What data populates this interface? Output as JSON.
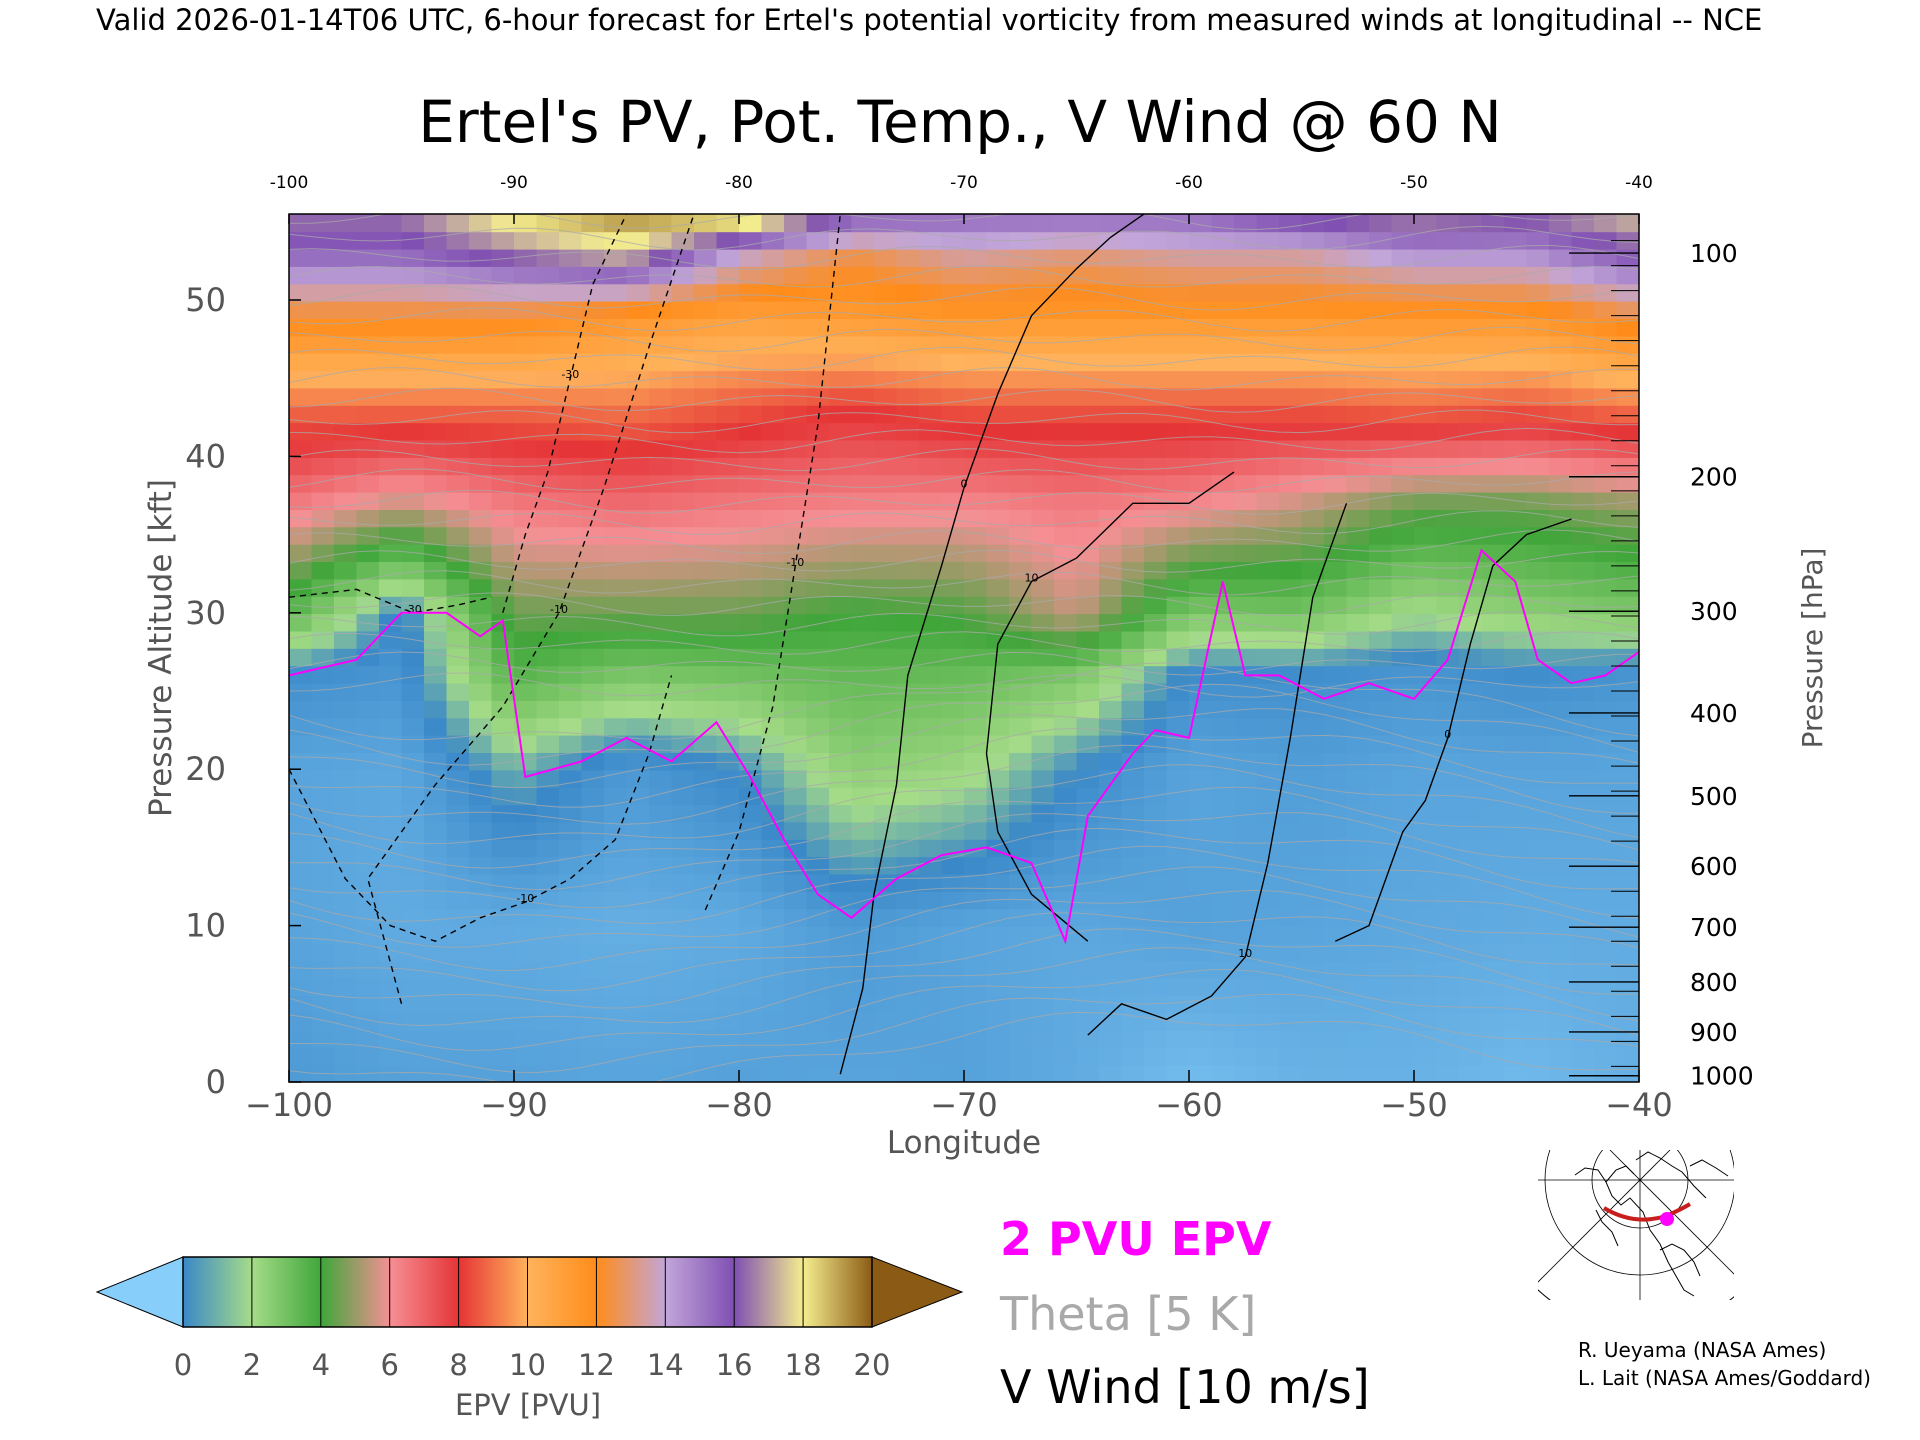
{
  "header": {
    "valid_line": "Valid 2026-01-14T06 UTC, 6-hour forecast for Ertel's potential vorticity from measured winds at longitudinal -- NCE"
  },
  "chart_data": {
    "type": "heatmap",
    "title": "Ertel's PV, Pot. Temp., V Wind @ 60 N",
    "xlabel": "Longitude",
    "ylabel_left": "Pressure Altitude [kft]",
    "ylabel_right": "Pressure [hPa]",
    "xlim": [
      -100,
      -40
    ],
    "ylim": [
      0,
      55.5
    ],
    "x_ticks": [
      "−100",
      "−90",
      "−80",
      "−70",
      "−60",
      "−50",
      "−40"
    ],
    "x_tick_values": [
      -100,
      -90,
      -80,
      -70,
      -60,
      -50,
      -40
    ],
    "top_x_ticks": [
      "-100",
      "-90",
      "-80",
      "-70",
      "-60",
      "-50",
      "-40"
    ],
    "y_ticks": [
      "0",
      "10",
      "20",
      "30",
      "40",
      "50"
    ],
    "y_tick_values": [
      0,
      10,
      20,
      30,
      40,
      50
    ],
    "pressure_ticks": [
      {
        "label": "100",
        "kft": 53.0
      },
      {
        "label": "200",
        "kft": 38.7
      },
      {
        "label": "300",
        "kft": 30.1
      },
      {
        "label": "400",
        "kft": 23.6
      },
      {
        "label": "500",
        "kft": 18.3
      },
      {
        "label": "600",
        "kft": 13.8
      },
      {
        "label": "700",
        "kft": 9.9
      },
      {
        "label": "800",
        "kft": 6.4
      },
      {
        "label": "900",
        "kft": 3.2
      },
      {
        "label": "1000",
        "kft": 0.4
      }
    ],
    "pv_bands": [
      {
        "pvu": 0,
        "color": "#87cefa"
      },
      {
        "pvu": 2,
        "color": "#3a88c8"
      },
      {
        "pvu": 3,
        "color": "#a6dc88"
      },
      {
        "pvu": 5,
        "color": "#3fa63a"
      },
      {
        "pvu": 7,
        "color": "#f59095"
      },
      {
        "pvu": 9,
        "color": "#e53436"
      },
      {
        "pvu": 11,
        "color": "#ffb35c"
      },
      {
        "pvu": 13,
        "color": "#ff8c1a"
      },
      {
        "pvu": 15,
        "color": "#c2a6d9"
      },
      {
        "pvu": 17,
        "color": "#7f4fb2"
      },
      {
        "pvu": 19,
        "color": "#f5ee8f"
      },
      {
        "pvu": 21,
        "color": "#8b5a14"
      }
    ],
    "pv_profile": [
      {
        "lon": -100,
        "kft": [
          0,
          10,
          20,
          26,
          30,
          37,
          43,
          49,
          53,
          55.5
        ],
        "pvu": [
          1.5,
          1.2,
          1.2,
          1.8,
          4.5,
          7.5,
          9.8,
          13.2,
          16.5,
          17.5
        ]
      },
      {
        "lon": -95,
        "kft": [
          0,
          10,
          20,
          26,
          30,
          37,
          43,
          49,
          53,
          55.5
        ],
        "pvu": [
          1.3,
          1.0,
          1.1,
          1.6,
          1.8,
          6.5,
          9.8,
          13.2,
          16.5,
          17.5
        ]
      },
      {
        "lon": -90,
        "kft": [
          0,
          10,
          20,
          26,
          30,
          37,
          43,
          49,
          53,
          55.5
        ],
        "pvu": [
          1.3,
          1.0,
          2.5,
          4.5,
          5.5,
          7.5,
          9.8,
          13.2,
          17.5,
          19.5
        ]
      },
      {
        "lon": -85,
        "kft": [
          0,
          10,
          20,
          26,
          30,
          37,
          43,
          49,
          53,
          55.5
        ],
        "pvu": [
          1.2,
          0.9,
          1.5,
          3.8,
          5.5,
          7.8,
          10.0,
          12.5,
          18.5,
          20.5
        ]
      },
      {
        "lon": -80,
        "kft": [
          0,
          10,
          20,
          26,
          30,
          37,
          43,
          49,
          53,
          55.5
        ],
        "pvu": [
          1.3,
          1.0,
          2.0,
          4.0,
          5.5,
          7.5,
          9.5,
          12.0,
          15.0,
          20.5
        ]
      },
      {
        "lon": -75,
        "kft": [
          0,
          10,
          20,
          26,
          30,
          37,
          43,
          49,
          53,
          55.5
        ],
        "pvu": [
          1.2,
          1.5,
          3.5,
          4.3,
          5.0,
          7.3,
          9.0,
          12.3,
          13.5,
          17.0
        ]
      },
      {
        "lon": -70,
        "kft": [
          0,
          10,
          20,
          26,
          30,
          37,
          43,
          49,
          53,
          55.5
        ],
        "pvu": [
          1.3,
          1.2,
          3.2,
          4.2,
          5.2,
          7.2,
          9.5,
          12.5,
          14.5,
          16.5
        ]
      },
      {
        "lon": -65,
        "kft": [
          0,
          10,
          20,
          26,
          30,
          37,
          43,
          49,
          53,
          55.5
        ],
        "pvu": [
          1.0,
          1.1,
          2.0,
          3.8,
          6.5,
          7.5,
          9.5,
          12.5,
          14.0,
          16.5
        ]
      },
      {
        "lon": -60,
        "kft": [
          0,
          10,
          20,
          26,
          30,
          37,
          43,
          49,
          53,
          55.5
        ],
        "pvu": [
          0.5,
          1.3,
          1.2,
          1.8,
          3.8,
          7.2,
          9.5,
          12.5,
          14.5,
          16.5
        ]
      },
      {
        "lon": -55,
        "kft": [
          0,
          10,
          20,
          26,
          30,
          37,
          43,
          49,
          53,
          55.5
        ],
        "pvu": [
          0.8,
          1.2,
          1.4,
          1.8,
          4.0,
          6.5,
          9.5,
          12.5,
          14.5,
          17.5
        ]
      },
      {
        "lon": -50,
        "kft": [
          0,
          10,
          20,
          26,
          30,
          37,
          43,
          49,
          53,
          55.5
        ],
        "pvu": [
          0.8,
          1.1,
          1.2,
          1.6,
          3.0,
          5.5,
          9.8,
          12.5,
          15.5,
          18.0
        ]
      },
      {
        "lon": -45,
        "kft": [
          0,
          10,
          20,
          26,
          30,
          37,
          43,
          49,
          53,
          55.5
        ],
        "pvu": [
          0.6,
          1.0,
          1.2,
          1.8,
          3.5,
          5.5,
          9.5,
          12.5,
          15.5,
          17.5
        ]
      },
      {
        "lon": -40,
        "kft": [
          0,
          10,
          20,
          26,
          30,
          37,
          43,
          49,
          53,
          55.5
        ],
        "pvu": [
          0.9,
          1.0,
          1.2,
          1.6,
          3.8,
          6.0,
          10.0,
          13.5,
          17.0,
          18.5
        ]
      }
    ],
    "two_pvu_contour": {
      "lon": [
        -100,
        -97,
        -95,
        -93,
        -91.5,
        -90.5,
        -89.5,
        -87,
        -85,
        -83,
        -81,
        -79.5,
        -78,
        -76.5,
        -75,
        -73,
        -71,
        -69,
        -67,
        -65.5,
        -64.5,
        -62.5,
        -61.5,
        -60,
        -58.5,
        -57.5,
        -56,
        -54,
        -52,
        -50,
        -48.5,
        -47,
        -45.5,
        -44.5,
        -43,
        -41.5,
        -40
      ],
      "kft": [
        26,
        27,
        30,
        30,
        28.5,
        29.5,
        19.5,
        20.5,
        22,
        20.5,
        23,
        19.5,
        15.5,
        12,
        10.5,
        13,
        14.5,
        15,
        14,
        9,
        17,
        21,
        22.5,
        22,
        32,
        26,
        26,
        24.5,
        25.5,
        24.5,
        27,
        34,
        32,
        27,
        25.5,
        26,
        27.5
      ]
    },
    "v_wind_contours": [
      {
        "label": "0",
        "style": "solid",
        "lon": [
          -75.5,
          -74.5,
          -74,
          -73,
          -72.5,
          -71,
          -70,
          -68.5,
          -67,
          -65,
          -63.5,
          -62
        ],
        "kft": [
          0.5,
          6,
          12,
          19,
          26,
          33,
          38,
          44,
          49,
          52,
          54,
          55.5
        ]
      },
      {
        "label": "10",
        "style": "solid",
        "lon": [
          -64.5,
          -63,
          -61,
          -59,
          -57.5,
          -56.5,
          -55.5,
          -54.5,
          -53
        ],
        "kft": [
          3,
          5,
          4,
          5.5,
          8,
          14,
          22,
          31,
          37
        ]
      },
      {
        "label": "10",
        "style": "solid",
        "lon": [
          -64.5,
          -67,
          -68.5,
          -69,
          -68.5,
          -67,
          -65,
          -62.5,
          -60,
          -58
        ],
        "kft": [
          9,
          12,
          16,
          21,
          28,
          32,
          33.5,
          37,
          37,
          39
        ]
      },
      {
        "label": "0",
        "style": "solid",
        "lon": [
          -53.5,
          -52,
          -50.5,
          -49.5,
          -48.5,
          -47.5,
          -46.5,
          -45,
          -43
        ],
        "kft": [
          9,
          10,
          16,
          18,
          22,
          28,
          33,
          35,
          36
        ]
      },
      {
        "label": "-30",
        "style": "dashed",
        "lon": [
          -90.5,
          -89.5,
          -88.5,
          -87.5,
          -86.5,
          -85
        ],
        "kft": [
          30,
          35,
          39,
          45,
          51,
          55.5
        ]
      },
      {
        "label": "-30",
        "style": "dashed",
        "lon": [
          -100,
          -97,
          -94.5,
          -92.5,
          -91
        ],
        "kft": [
          31,
          31.5,
          30,
          30.5,
          31
        ]
      },
      {
        "label": "-10",
        "style": "dashed",
        "lon": [
          -95,
          -96.5,
          -93.5,
          -90.5,
          -88,
          -86,
          -84,
          -82
        ],
        "kft": [
          5,
          13,
          19,
          24,
          30,
          38,
          47,
          55.5
        ]
      },
      {
        "label": "-10",
        "style": "dashed",
        "lon": [
          -100,
          -97.5,
          -95.5,
          -93.5,
          -91.5,
          -89.5,
          -87.5,
          -85.5,
          -84,
          -83
        ],
        "kft": [
          20,
          13,
          10,
          9,
          10.5,
          11.5,
          13,
          15.5,
          21,
          26
        ]
      },
      {
        "label": "-10",
        "style": "dashed",
        "lon": [
          -81.5,
          -80,
          -78.5,
          -77.5,
          -76.5,
          -75.5
        ],
        "kft": [
          11,
          16,
          24,
          33,
          42,
          55.5
        ]
      }
    ],
    "theta_line_count": 42
  },
  "colorbar": {
    "label": "EPV [PVU]",
    "ticks": [
      "0",
      "2",
      "4",
      "6",
      "8",
      "10",
      "12",
      "14",
      "16",
      "18",
      "20"
    ],
    "low_color": "#87cefa",
    "high_color": "#8b5a14",
    "segment_colors": [
      "#3a88c8",
      "#a6dc88",
      "#3fa63a",
      "#f59095",
      "#e53436",
      "#ffb35c",
      "#ff8c1a",
      "#c2a6d9",
      "#7f4fb2",
      "#f5ee8f"
    ]
  },
  "legend": {
    "pvu_label": "2 PVU EPV",
    "pvu_color": "#ff00ff",
    "theta_label": "Theta [5 K]",
    "theta_color": "#a9a9a9",
    "wind_label": "V Wind [10 m/s]",
    "wind_color": "#000000"
  },
  "credits": {
    "line1": "R. Ueyama (NASA Ames)",
    "line2": "L. Lait (NASA Ames/Goddard)"
  },
  "inset_map": {
    "label": "location-map",
    "track_color": "#c81e1e",
    "point_color": "#ff00ff"
  }
}
